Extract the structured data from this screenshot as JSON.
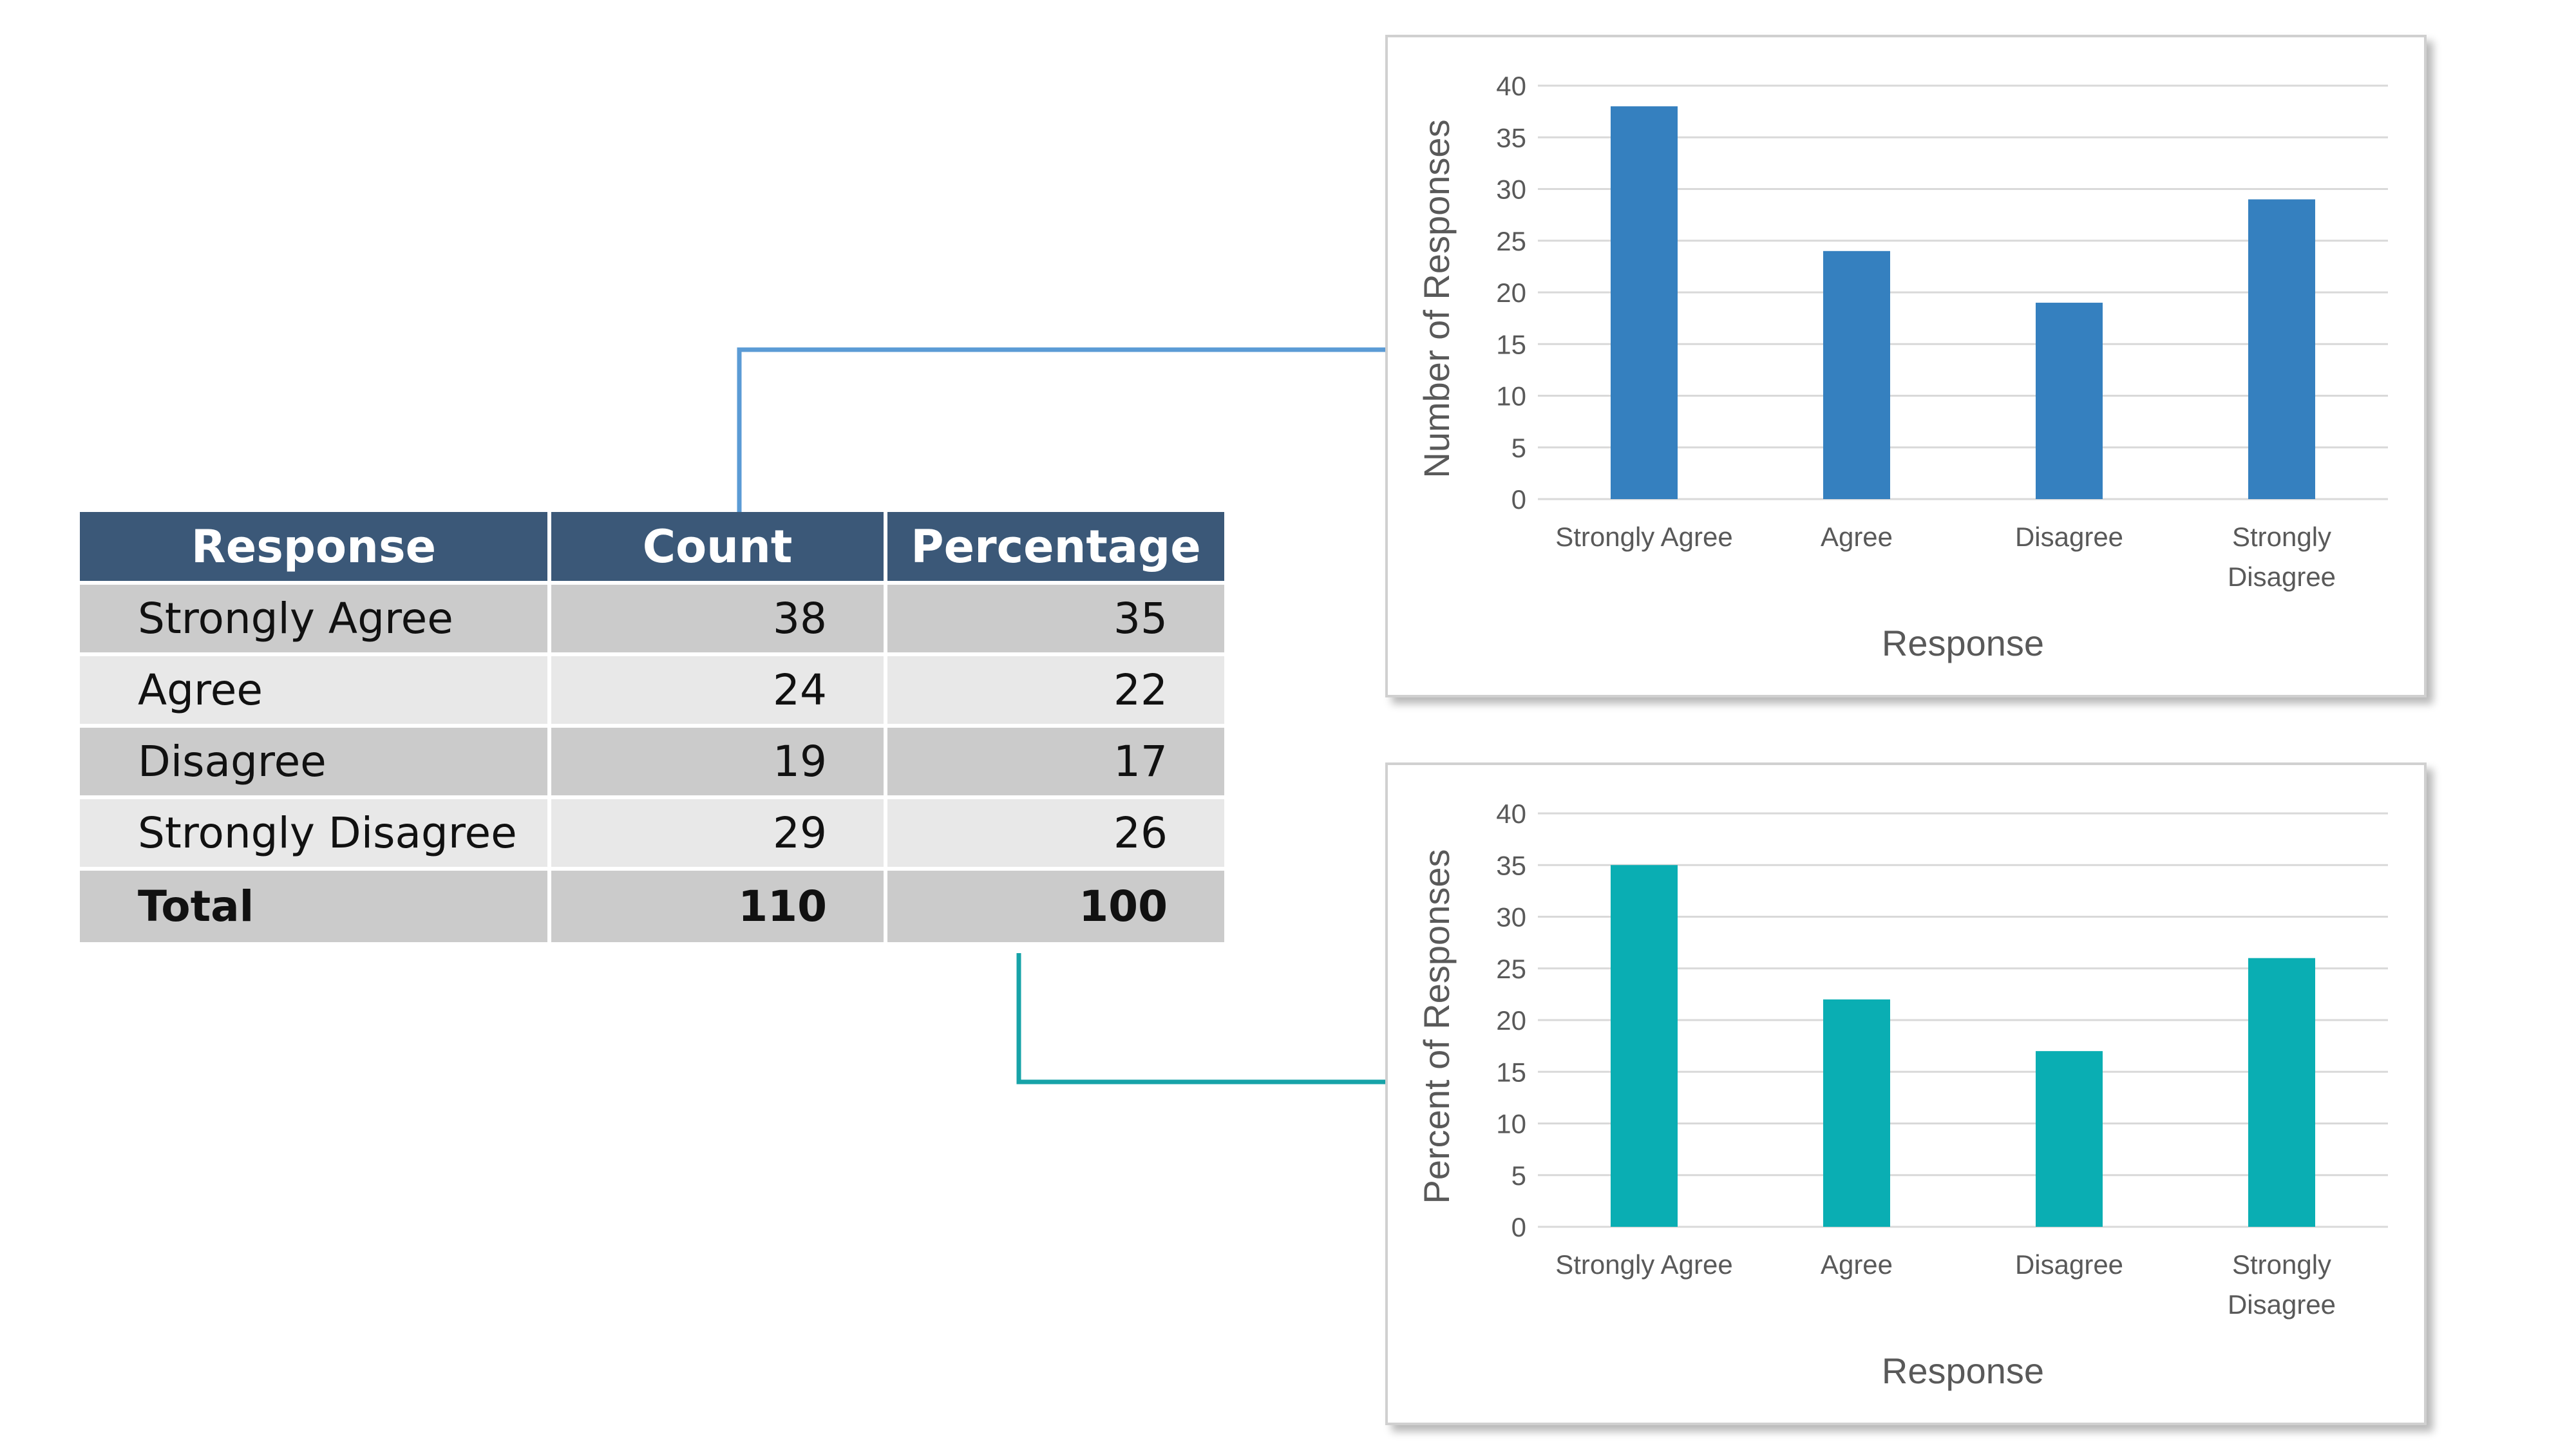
{
  "table": {
    "headers": [
      "Response",
      "Count",
      "Percentage"
    ],
    "rows": [
      {
        "response": "Strongly Agree",
        "count": "38",
        "percentage": "35"
      },
      {
        "response": "Agree",
        "count": "24",
        "percentage": "22"
      },
      {
        "response": "Disagree",
        "count": "19",
        "percentage": "17"
      },
      {
        "response": "Strongly Disagree",
        "count": "29",
        "percentage": "26"
      }
    ],
    "total": {
      "response": "Total",
      "count": "110",
      "percentage": "100"
    },
    "colors": {
      "header": "#3b5878",
      "row_dark": "#cbcbcb",
      "row_light": "#e8e8e8"
    }
  },
  "chart_data": [
    {
      "type": "bar",
      "categories": [
        "Strongly Agree",
        "Agree",
        "Disagree",
        "Strongly Disagree"
      ],
      "category_labels": [
        [
          "Strongly Agree"
        ],
        [
          "Agree"
        ],
        [
          "Disagree"
        ],
        [
          "Strongly",
          "Disagree"
        ]
      ],
      "values": [
        38,
        24,
        19,
        29
      ],
      "xlabel": "Response",
      "ylabel": "Number of Responses",
      "ylim": [
        0,
        40
      ],
      "yticks": [
        0,
        5,
        10,
        15,
        20,
        25,
        30,
        35,
        40
      ],
      "color": "#3580bf",
      "grid": true
    },
    {
      "type": "bar",
      "categories": [
        "Strongly Agree",
        "Agree",
        "Disagree",
        "Strongly Disagree"
      ],
      "category_labels": [
        [
          "Strongly Agree"
        ],
        [
          "Agree"
        ],
        [
          "Disagree"
        ],
        [
          "Strongly",
          "Disagree"
        ]
      ],
      "values": [
        35,
        22,
        17,
        26
      ],
      "xlabel": "Response",
      "ylabel": "Percent of Responses",
      "ylim": [
        0,
        40
      ],
      "yticks": [
        0,
        5,
        10,
        15,
        20,
        25,
        30,
        35,
        40
      ],
      "color": "#0aaeb3",
      "grid": true
    }
  ],
  "connectors": {
    "count_color": "#5b9bd5",
    "percentage_color": "#17a3a8"
  }
}
